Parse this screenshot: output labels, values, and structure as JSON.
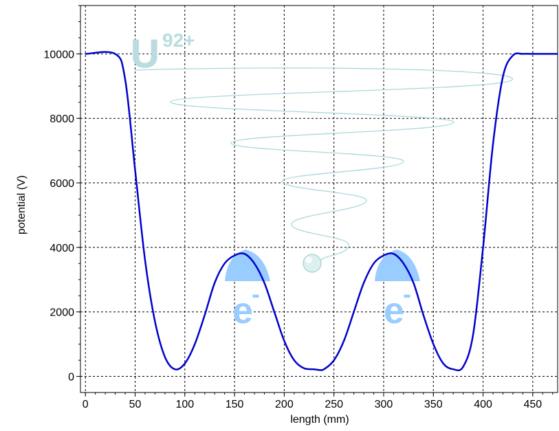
{
  "chart_data": {
    "type": "line",
    "xlabel": "length (mm)",
    "ylabel": "potential (V)",
    "xlim": [
      -5,
      475
    ],
    "ylim": [
      -500,
      11500
    ],
    "xticks": [
      0,
      50,
      100,
      150,
      200,
      250,
      300,
      350,
      400,
      450
    ],
    "yticks": [
      0,
      2000,
      4000,
      6000,
      8000,
      10000
    ],
    "grid": true,
    "series": [
      {
        "color": "#0000cc",
        "x": [
          0,
          30,
          40,
          50,
          60,
          70,
          80,
          90,
          100,
          110,
          120,
          130,
          140,
          150,
          160,
          170,
          180,
          190,
          200,
          210,
          220,
          230,
          235,
          240,
          250,
          260,
          270,
          280,
          290,
          300,
          310,
          320,
          330,
          340,
          350,
          360,
          370,
          380,
          390,
          400,
          410,
          420,
          430,
          440,
          450,
          475
        ],
        "y": [
          10000,
          10000,
          9200,
          6400,
          3600,
          1700,
          600,
          220,
          400,
          1000,
          1900,
          2900,
          3500,
          3750,
          3800,
          3500,
          2900,
          2000,
          1100,
          500,
          250,
          220,
          200,
          220,
          500,
          1100,
          2000,
          2900,
          3500,
          3750,
          3800,
          3500,
          2900,
          1900,
          1000,
          400,
          220,
          300,
          1300,
          4000,
          7200,
          9300,
          9950,
          10000,
          10000,
          10000
        ]
      }
    ]
  },
  "overlay": {
    "ion_base": "U",
    "ion_charge": "92+",
    "electron_left_base": "e",
    "electron_left_charge": "-",
    "electron_right_base": "e",
    "electron_right_charge": "-",
    "ion_color": "#b8dde0",
    "electron_color": "#99ccff"
  }
}
